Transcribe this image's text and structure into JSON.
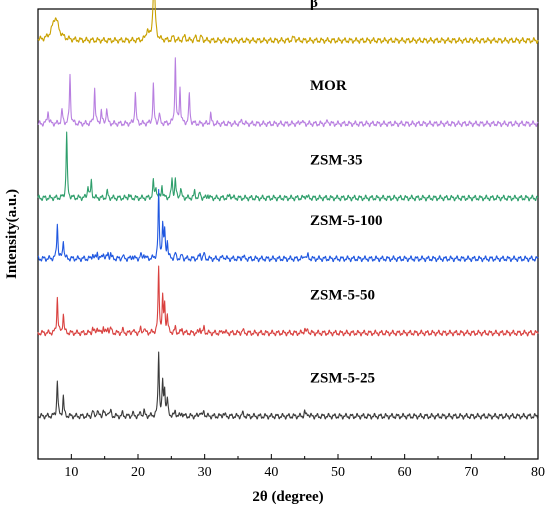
{
  "chart_data": {
    "type": "line",
    "xlabel": "2θ (degree)",
    "ylabel": "Intensity(a.u.)",
    "xlim": [
      5,
      80
    ],
    "x_ticks": [
      "10",
      "20",
      "30",
      "40",
      "50",
      "60",
      "70",
      "80"
    ],
    "x_tick_values": [
      10,
      20,
      30,
      40,
      50,
      60,
      70,
      80
    ],
    "grid": false,
    "legend": "inline labels",
    "series": [
      {
        "name": "β",
        "color": "#c9a100",
        "baseline": 0.93,
        "peaks": [
          [
            7.6,
            0.35,
            0.6
          ],
          [
            21.4,
            0.15,
            0.2
          ],
          [
            22.4,
            1.0,
            0.18
          ],
          [
            25.3,
            0.06,
            0.15
          ],
          [
            27.0,
            0.06,
            0.2
          ],
          [
            28.6,
            0.05,
            0.15
          ],
          [
            29.5,
            0.06,
            0.15
          ],
          [
            43.4,
            0.05,
            0.2
          ]
        ]
      },
      {
        "name": "MOR",
        "color": "#b87fe0",
        "baseline": 0.745,
        "peaks": [
          [
            6.5,
            0.2,
            0.12
          ],
          [
            8.6,
            0.2,
            0.12
          ],
          [
            9.8,
            0.75,
            0.1
          ],
          [
            13.5,
            0.55,
            0.1
          ],
          [
            14.5,
            0.2,
            0.1
          ],
          [
            15.3,
            0.25,
            0.1
          ],
          [
            19.6,
            0.5,
            0.1
          ],
          [
            22.3,
            0.6,
            0.1
          ],
          [
            23.2,
            0.15,
            0.1
          ],
          [
            25.6,
            1.0,
            0.1
          ],
          [
            26.3,
            0.55,
            0.1
          ],
          [
            27.7,
            0.45,
            0.1
          ],
          [
            30.9,
            0.15,
            0.1
          ],
          [
            35.6,
            0.05,
            0.15
          ],
          [
            44.5,
            0.05,
            0.15
          ],
          [
            48.5,
            0.04,
            0.15
          ]
        ]
      },
      {
        "name": "ZSM-35",
        "color": "#2e9e6b",
        "baseline": 0.58,
        "peaks": [
          [
            9.3,
            1.0,
            0.1
          ],
          [
            12.5,
            0.2,
            0.1
          ],
          [
            13.0,
            0.25,
            0.1
          ],
          [
            15.4,
            0.1,
            0.1
          ],
          [
            18.6,
            0.05,
            0.1
          ],
          [
            22.3,
            0.25,
            0.1
          ],
          [
            22.7,
            0.18,
            0.1
          ],
          [
            23.6,
            0.2,
            0.1
          ],
          [
            25.1,
            0.3,
            0.1
          ],
          [
            25.6,
            0.28,
            0.1
          ],
          [
            26.4,
            0.15,
            0.1
          ],
          [
            28.5,
            0.1,
            0.1
          ],
          [
            29.3,
            0.08,
            0.1
          ],
          [
            30.5,
            0.06,
            0.1
          ],
          [
            33.8,
            0.05,
            0.15
          ],
          [
            45.2,
            0.04,
            0.15
          ]
        ]
      },
      {
        "name": "ZSM-5-100",
        "color": "#1f57e0",
        "baseline": 0.445,
        "peaks": [
          [
            7.9,
            0.55,
            0.1
          ],
          [
            8.8,
            0.3,
            0.1
          ],
          [
            13.2,
            0.08,
            0.1
          ],
          [
            13.9,
            0.1,
            0.1
          ],
          [
            14.8,
            0.1,
            0.1
          ],
          [
            15.5,
            0.08,
            0.1
          ],
          [
            15.9,
            0.08,
            0.1
          ],
          [
            17.7,
            0.05,
            0.1
          ],
          [
            19.2,
            0.05,
            0.1
          ],
          [
            20.4,
            0.06,
            0.1
          ],
          [
            20.9,
            0.08,
            0.1
          ],
          [
            23.1,
            1.0,
            0.1
          ],
          [
            23.7,
            0.5,
            0.1
          ],
          [
            24.0,
            0.4,
            0.1
          ],
          [
            24.4,
            0.25,
            0.1
          ],
          [
            25.6,
            0.08,
            0.1
          ],
          [
            26.6,
            0.06,
            0.1
          ],
          [
            29.3,
            0.08,
            0.1
          ],
          [
            29.9,
            0.08,
            0.1
          ],
          [
            32.8,
            0.04,
            0.15
          ],
          [
            35.7,
            0.04,
            0.15
          ],
          [
            45.0,
            0.07,
            0.1
          ],
          [
            45.5,
            0.05,
            0.1
          ]
        ]
      },
      {
        "name": "ZSM-5-50",
        "color": "#d9413f",
        "baseline": 0.28,
        "peaks": [
          [
            7.9,
            0.55,
            0.1
          ],
          [
            8.8,
            0.3,
            0.1
          ],
          [
            13.2,
            0.08,
            0.1
          ],
          [
            13.9,
            0.1,
            0.1
          ],
          [
            14.8,
            0.1,
            0.1
          ],
          [
            15.5,
            0.08,
            0.1
          ],
          [
            15.9,
            0.08,
            0.1
          ],
          [
            17.7,
            0.05,
            0.1
          ],
          [
            19.2,
            0.05,
            0.1
          ],
          [
            20.4,
            0.06,
            0.1
          ],
          [
            20.9,
            0.08,
            0.1
          ],
          [
            23.1,
            1.0,
            0.1
          ],
          [
            23.7,
            0.5,
            0.1
          ],
          [
            24.0,
            0.4,
            0.1
          ],
          [
            24.4,
            0.25,
            0.1
          ],
          [
            25.6,
            0.08,
            0.1
          ],
          [
            26.6,
            0.06,
            0.1
          ],
          [
            29.3,
            0.08,
            0.1
          ],
          [
            29.9,
            0.08,
            0.1
          ],
          [
            32.8,
            0.04,
            0.15
          ],
          [
            35.7,
            0.04,
            0.15
          ],
          [
            45.0,
            0.07,
            0.1
          ],
          [
            45.5,
            0.05,
            0.1
          ]
        ]
      },
      {
        "name": "ZSM-5-25",
        "color": "#3a3a3a",
        "baseline": 0.095,
        "peaks": [
          [
            7.9,
            0.55,
            0.1
          ],
          [
            8.8,
            0.3,
            0.1
          ],
          [
            13.2,
            0.08,
            0.1
          ],
          [
            13.9,
            0.1,
            0.1
          ],
          [
            14.8,
            0.1,
            0.1
          ],
          [
            15.5,
            0.08,
            0.1
          ],
          [
            15.9,
            0.08,
            0.1
          ],
          [
            17.7,
            0.05,
            0.1
          ],
          [
            19.2,
            0.05,
            0.1
          ],
          [
            20.4,
            0.06,
            0.1
          ],
          [
            20.9,
            0.08,
            0.1
          ],
          [
            23.1,
            1.0,
            0.1
          ],
          [
            23.7,
            0.5,
            0.1
          ],
          [
            24.0,
            0.4,
            0.1
          ],
          [
            24.4,
            0.25,
            0.1
          ],
          [
            25.6,
            0.08,
            0.1
          ],
          [
            26.6,
            0.06,
            0.1
          ],
          [
            29.3,
            0.08,
            0.1
          ],
          [
            29.9,
            0.08,
            0.1
          ],
          [
            32.8,
            0.04,
            0.15
          ],
          [
            35.7,
            0.04,
            0.15
          ],
          [
            45.0,
            0.07,
            0.1
          ],
          [
            45.5,
            0.05,
            0.1
          ]
        ]
      }
    ]
  }
}
